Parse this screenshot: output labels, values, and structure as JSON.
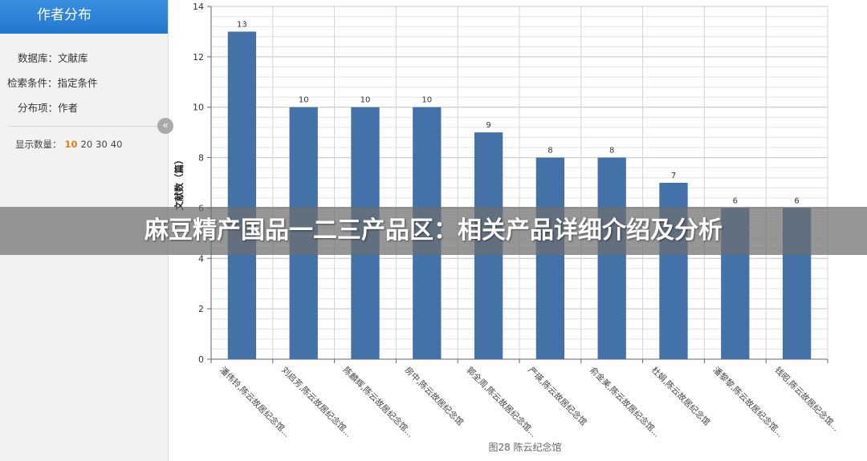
{
  "panel": {
    "title": "作者分布",
    "database": "数据库：文献库",
    "condition": "检索条件：指定条件",
    "distribution": "分布项：作者",
    "count_label": "显示数量：",
    "count_options": [
      "10",
      "20",
      "30",
      "40"
    ],
    "count_selected": "10",
    "collapse_glyph": "«"
  },
  "overlay": {
    "text": "麻豆精产国品一二三产品区：相关产品详细介绍及分析"
  },
  "colors": {
    "bar": "#4472a8",
    "accent": "#f07a17"
  },
  "chart_data": {
    "type": "bar",
    "title": "",
    "caption": "图28 陈云纪念馆",
    "ylabel": "文献数（篇）",
    "xlabel": "",
    "ylim": [
      0,
      14
    ],
    "yticks": [
      0,
      2,
      4,
      6,
      8,
      10,
      12,
      14
    ],
    "categories": [
      "潘伟铃,陈云故居纪念馆...",
      "刘启芳,陈云故居纪念馆...",
      "陈麟辉,陈云故居纪念馆...",
      "房中,陈云故居纪念馆",
      "郭全周,陈云故居纪念馆...",
      "严瑛,陈云故居纪念馆",
      "俞金美,陈云故居纪念馆...",
      "杜娟,陈云故居纪念馆",
      "潘黎黎,陈云故居纪念馆...",
      "钱昭,陈云故居纪念馆..."
    ],
    "values": [
      13,
      10,
      10,
      10,
      9,
      8,
      8,
      7,
      6,
      6
    ],
    "grid": true,
    "legend": "none"
  }
}
